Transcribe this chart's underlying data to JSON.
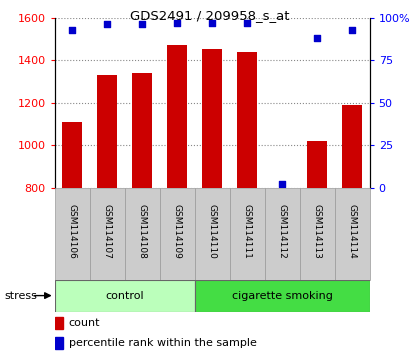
{
  "title": "GDS2491 / 209958_s_at",
  "samples": [
    "GSM114106",
    "GSM114107",
    "GSM114108",
    "GSM114109",
    "GSM114110",
    "GSM114111",
    "GSM114112",
    "GSM114113",
    "GSM114114"
  ],
  "counts": [
    1107,
    1330,
    1340,
    1470,
    1452,
    1438,
    800,
    1020,
    1190
  ],
  "percentile_ranks": [
    93,
    96,
    96,
    97,
    97,
    97,
    2,
    88,
    93
  ],
  "groups": [
    {
      "label": "control",
      "start": 0,
      "end": 4,
      "color": "#bbffbb"
    },
    {
      "label": "cigarette smoking",
      "start": 4,
      "end": 9,
      "color": "#44dd44"
    }
  ],
  "stress_label": "stress",
  "bar_color": "#cc0000",
  "dot_color": "#0000cc",
  "ylim_left": [
    800,
    1600
  ],
  "ylim_right": [
    0,
    100
  ],
  "yticks_left": [
    800,
    1000,
    1200,
    1400,
    1600
  ],
  "yticks_right": [
    0,
    25,
    50,
    75,
    100
  ],
  "right_tick_labels": [
    "0",
    "25",
    "50",
    "75",
    "100%"
  ],
  "legend_count_label": "count",
  "legend_pct_label": "percentile rank within the sample",
  "grid_color": "#888888",
  "label_bg_color": "#cccccc",
  "label_border_color": "#999999"
}
